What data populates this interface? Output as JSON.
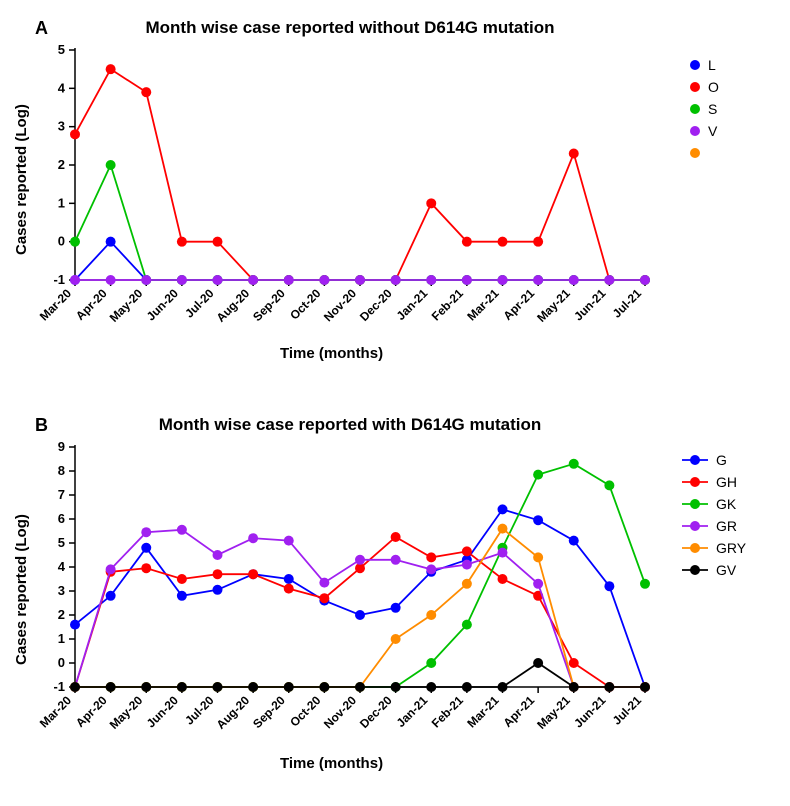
{
  "panelA": {
    "label": "A",
    "title": "Month wise case reported without D614G mutation",
    "ylabel": "Cases reported (Log)",
    "xlabel": "Time (months)",
    "categories": [
      "Mar-20",
      "Apr-20",
      "May-20",
      "Jun-20",
      "Jul-20",
      "Aug-20",
      "Sep-20",
      "Oct-20",
      "Nov-20",
      "Dec-20",
      "Jan-21",
      "Feb-21",
      "Mar-21",
      "Apr-21",
      "May-21",
      "Jun-21",
      "Jul-21"
    ],
    "ylim": [
      -1,
      5
    ],
    "yticks": [
      -1,
      0,
      1,
      2,
      3,
      4,
      5
    ],
    "axis_color": "#000000",
    "background_color": "#ffffff",
    "marker_size": 5,
    "line_width": 1.8,
    "series": [
      {
        "name": "L",
        "color": "#0000ff",
        "values": [
          -1,
          0,
          -1,
          -1,
          -1,
          -1,
          -1,
          -1,
          -1,
          -1,
          -1,
          -1,
          -1,
          -1,
          -1,
          -1,
          -1
        ]
      },
      {
        "name": "O",
        "color": "#ff0000",
        "values": [
          2.8,
          4.5,
          3.9,
          0,
          0,
          -1,
          -1,
          -1,
          -1,
          -1,
          1,
          0,
          0,
          0,
          2.3,
          -1,
          -1
        ]
      },
      {
        "name": "S",
        "color": "#00c000",
        "values": [
          0,
          2,
          -1,
          -1,
          -1,
          -1,
          -1,
          -1,
          -1,
          -1,
          -1,
          -1,
          -1,
          -1,
          -1,
          -1,
          -1
        ]
      },
      {
        "name": "V",
        "color": "#a020f0",
        "values": [
          -1,
          -1,
          -1,
          -1,
          -1,
          -1,
          -1,
          -1,
          -1,
          -1,
          -1,
          -1,
          -1,
          -1,
          -1,
          -1,
          -1
        ]
      },
      {
        "name": "",
        "color": "#ff8c00",
        "values": null
      }
    ]
  },
  "panelB": {
    "label": "B",
    "title": "Month wise case reported with D614G mutation",
    "ylabel": "Cases reported (Log)",
    "xlabel": "Time (months)",
    "categories": [
      "Mar-20",
      "Apr-20",
      "May-20",
      "Jun-20",
      "Jul-20",
      "Aug-20",
      "Sep-20",
      "Oct-20",
      "Nov-20",
      "Dec-20",
      "Jan-21",
      "Feb-21",
      "Mar-21",
      "Apr-21",
      "May-21",
      "Jun-21",
      "Jul-21"
    ],
    "ylim": [
      -1,
      9
    ],
    "yticks": [
      -1,
      0,
      1,
      2,
      3,
      4,
      5,
      6,
      7,
      8,
      9
    ],
    "axis_color": "#000000",
    "background_color": "#ffffff",
    "marker_size": 5,
    "line_width": 1.8,
    "series": [
      {
        "name": "G",
        "color": "#0000ff",
        "values": [
          1.6,
          2.8,
          4.8,
          2.8,
          3.05,
          3.7,
          3.5,
          2.6,
          2.0,
          2.3,
          3.8,
          4.3,
          6.4,
          5.95,
          5.1,
          3.2,
          -1
        ]
      },
      {
        "name": "GH",
        "color": "#ff0000",
        "values": [
          -1,
          3.8,
          3.95,
          3.5,
          3.7,
          3.7,
          3.1,
          2.7,
          3.95,
          5.25,
          4.4,
          4.65,
          3.5,
          2.8,
          0,
          -1,
          -1
        ]
      },
      {
        "name": "GK",
        "color": "#00c000",
        "values": [
          -1,
          -1,
          -1,
          -1,
          -1,
          -1,
          -1,
          -1,
          -1,
          -1,
          0,
          1.6,
          4.8,
          7.85,
          8.3,
          7.4,
          3.3
        ]
      },
      {
        "name": "GR",
        "color": "#a020f0",
        "values": [
          -1,
          3.9,
          5.45,
          5.55,
          4.5,
          5.2,
          5.1,
          3.35,
          4.3,
          4.3,
          3.9,
          4.1,
          4.6,
          3.3,
          -1,
          -1,
          -1
        ]
      },
      {
        "name": "GRY",
        "color": "#ff8c00",
        "values": [
          -1,
          -1,
          -1,
          -1,
          -1,
          -1,
          -1,
          -1,
          -1,
          1,
          2,
          3.3,
          5.6,
          4.4,
          -1,
          -1,
          -1
        ]
      },
      {
        "name": "GV",
        "color": "#000000",
        "values": [
          -1,
          -1,
          -1,
          -1,
          -1,
          -1,
          -1,
          -1,
          -1,
          -1,
          -1,
          -1,
          -1,
          0,
          -1,
          -1,
          -1
        ]
      }
    ]
  }
}
